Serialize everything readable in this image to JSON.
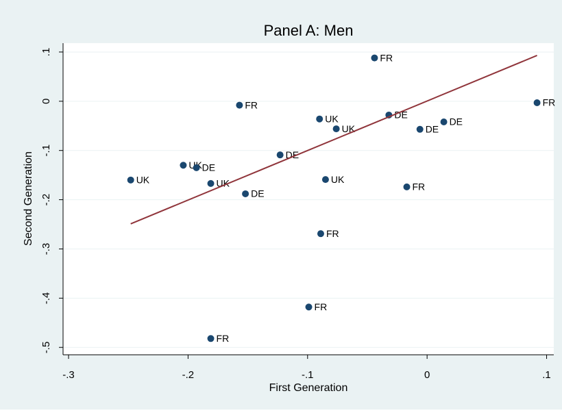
{
  "chart_data": {
    "type": "scatter",
    "title": "Panel A: Men",
    "x_label": "First Generation",
    "y_label": "Second Generation",
    "xlim": [
      -0.3046,
      0.106
    ],
    "ylim": [
      -0.515,
      0.118
    ],
    "xticks": [
      {
        "value": -0.3,
        "label": "-.3"
      },
      {
        "value": -0.2,
        "label": "-.2"
      },
      {
        "value": -0.1,
        "label": "-.1"
      },
      0,
      {
        "value": 0.1,
        "label": ".1"
      }
    ],
    "yticks": [
      {
        "value": 0.1,
        "label": ".1"
      },
      0,
      {
        "value": -0.1,
        "label": "-.1"
      },
      {
        "value": -0.2,
        "label": "-.2"
      },
      {
        "value": -0.3,
        "label": "-.3"
      },
      {
        "value": -0.4,
        "label": "-.4"
      },
      {
        "value": -0.5,
        "label": "-.5"
      }
    ],
    "grid": true,
    "series": [
      {
        "type": "scatter",
        "color": "#1a476f",
        "x": [
          -0.044,
          -0.157,
          0.092,
          -0.09,
          -0.032,
          -0.076,
          -0.006,
          0.014,
          -0.123,
          -0.204,
          -0.193,
          -0.248,
          -0.181,
          -0.085,
          -0.152,
          -0.017,
          -0.089,
          -0.099,
          -0.181
        ],
        "values": [
          0.088,
          -0.008,
          -0.003,
          -0.036,
          -0.028,
          -0.056,
          -0.057,
          -0.042,
          -0.109,
          -0.13,
          -0.135,
          -0.16,
          -0.167,
          -0.159,
          -0.188,
          -0.174,
          -0.269,
          -0.418,
          -0.482
        ],
        "labels": [
          "FR",
          "FR",
          "FR",
          "UK",
          "DE",
          "UK",
          "DE",
          "DE",
          "DE",
          "UK",
          "DE",
          "UK",
          "UK",
          "UK",
          "DE",
          "FR",
          "FR",
          "FR",
          "FR"
        ]
      },
      {
        "type": "line",
        "color": "#90353b",
        "x": [
          -0.248,
          0.092
        ],
        "values": [
          -0.249,
          0.093
        ]
      }
    ]
  }
}
